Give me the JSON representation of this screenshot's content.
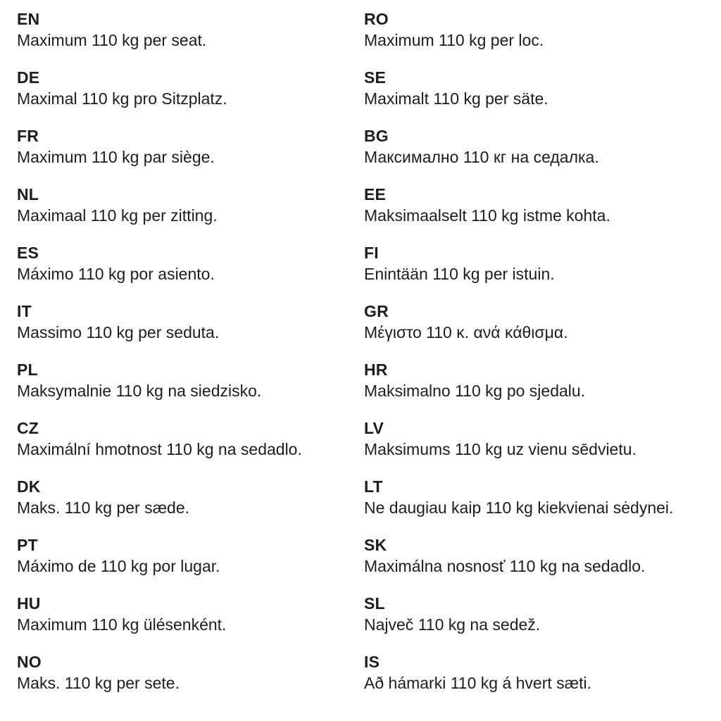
{
  "page": {
    "background_color": "#ffffff",
    "text_color": "#1d1d1b",
    "weight_value": "110 kg"
  },
  "columns": [
    {
      "items": [
        {
          "code": "EN",
          "text": "Maximum 110 kg per seat."
        },
        {
          "code": "DE",
          "text": "Maximal 110 kg pro Sitzplatz."
        },
        {
          "code": "FR",
          "text": "Maximum 110 kg par siège."
        },
        {
          "code": "NL",
          "text": "Maximaal 110 kg per zitting."
        },
        {
          "code": "ES",
          "text": "Máximo 110 kg por asiento."
        },
        {
          "code": "IT",
          "text": "Massimo 110 kg per seduta."
        },
        {
          "code": "PL",
          "text": "Maksymalnie 110 kg na siedzisko."
        },
        {
          "code": "CZ",
          "text": "Maximální hmotnost 110 kg na sedadlo."
        },
        {
          "code": "DK",
          "text": "Maks. 110 kg per sæde."
        },
        {
          "code": "PT",
          "text": "Máximo de 110 kg por lugar."
        },
        {
          "code": "HU",
          "text": "Maximum 110 kg ülésenként."
        },
        {
          "code": "NO",
          "text": "Maks. 110 kg per sete."
        }
      ]
    },
    {
      "items": [
        {
          "code": "RO",
          "text": "Maximum 110 kg per loc."
        },
        {
          "code": "SE",
          "text": "Maximalt 110 kg per säte."
        },
        {
          "code": "BG",
          "text": "Максимално 110 кг на седалка."
        },
        {
          "code": "EE",
          "text": "Maksimaalselt 110 kg istme kohta."
        },
        {
          "code": "FI",
          "text": "Enintään 110 kg per istuin."
        },
        {
          "code": "GR",
          "text": "Μέγιστο 110 κ. ανά κάθισμα."
        },
        {
          "code": "HR",
          "text": "Maksimalno 110 kg po sjedalu."
        },
        {
          "code": "LV",
          "text": "Maksimums 110 kg uz vienu sēdvietu."
        },
        {
          "code": "LT",
          "text": "Ne daugiau kaip 110 kg kiekvienai sėdynei."
        },
        {
          "code": "SK",
          "text": "Maximálna nosnosť 110 kg na sedadlo."
        },
        {
          "code": "SL",
          "text": "Največ 110 kg na sedež."
        },
        {
          "code": "IS",
          "text": "Að hámarki 110 kg á hvert sæti."
        }
      ]
    }
  ]
}
